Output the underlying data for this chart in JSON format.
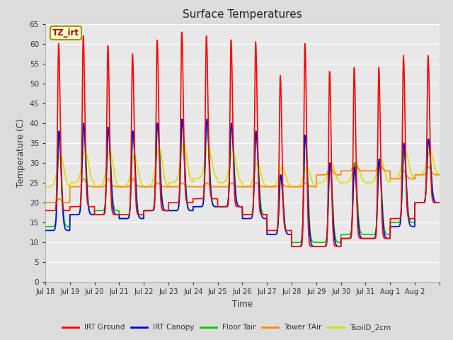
{
  "title": "Surface Temperatures",
  "ylabel": "Temperature (C)",
  "xlabel": "Time",
  "ylim": [
    0,
    65
  ],
  "yticks": [
    0,
    5,
    10,
    15,
    20,
    25,
    30,
    35,
    40,
    45,
    50,
    55,
    60,
    65
  ],
  "n_days": 16,
  "annotation": "TZ_irt",
  "series": {
    "IRT Ground": {
      "color": "#ff0000"
    },
    "IRT Canopy": {
      "color": "#0000ee"
    },
    "Floor Tair": {
      "color": "#00cc00"
    },
    "Tower TAir": {
      "color": "#ff8800"
    },
    "TsoilD_2cm": {
      "color": "#dddd00"
    }
  },
  "xtick_labels": [
    "Jul 18",
    "Jul 19",
    "Jul 20",
    "Jul 21",
    "Jul 22",
    "Jul 23",
    "Jul 24",
    "Jul 25",
    "Jul 26",
    "Jul 27",
    "Jul 28",
    "Jul 29",
    "Jul 30",
    "Jul 31",
    "Aug 1",
    "Aug 2"
  ],
  "fig_bg": "#dcdcdc",
  "plot_bg": "#e8e8e8",
  "line_width": 1.2,
  "irt_ground_peaks": [
    60,
    62,
    59.5,
    57.5,
    61,
    63,
    62,
    61,
    60.5,
    52,
    60,
    53,
    54,
    54,
    57,
    57
  ],
  "irt_ground_mins": [
    18,
    19,
    17,
    17,
    18,
    20,
    21,
    19,
    17,
    13,
    9,
    9,
    11,
    11,
    16,
    20
  ],
  "canopy_peaks": [
    38,
    40,
    39,
    38,
    40,
    41,
    41,
    40,
    38,
    27,
    37,
    30,
    29,
    31,
    35,
    36
  ],
  "canopy_mins": [
    13,
    17,
    17,
    16,
    18,
    18,
    19,
    19,
    16,
    12,
    9,
    9,
    11,
    11,
    14,
    20
  ],
  "floor_peaks": [
    38,
    40,
    39,
    38,
    40,
    41,
    41,
    40,
    38,
    27,
    37,
    30,
    30,
    31,
    33,
    36
  ],
  "floor_mins": [
    14,
    17,
    18,
    16,
    18,
    18,
    19,
    19,
    17,
    12,
    10,
    10,
    12,
    12,
    15,
    20
  ],
  "tower_peaks": [
    21,
    26,
    26,
    26,
    25,
    25,
    25,
    25,
    25,
    25,
    25,
    29,
    30,
    30,
    28,
    29
  ],
  "tower_mins": [
    20,
    24,
    24,
    24,
    24,
    24,
    24,
    24,
    24,
    24,
    24,
    27,
    28,
    28,
    26,
    27
  ],
  "tsoil_peaks": [
    32,
    33,
    33,
    32,
    34,
    35,
    34,
    33,
    30,
    29,
    29,
    30,
    30,
    31,
    33,
    33
  ],
  "tsoil_mins": [
    24,
    25,
    24,
    24,
    24,
    25,
    26,
    25,
    24,
    24,
    24,
    25,
    25,
    25,
    26,
    27
  ]
}
